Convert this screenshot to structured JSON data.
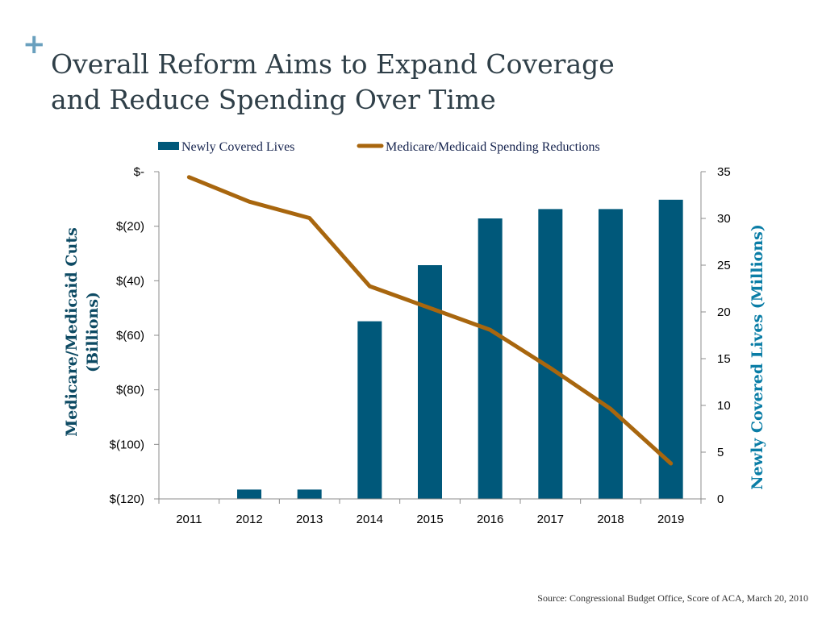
{
  "title": {
    "line1": "Overall Reform Aims to Expand Coverage",
    "line2": "and Reduce Spending Over Time"
  },
  "source": "Source: Congressional Budget Office, Score of ACA, March 20, 2010",
  "colors": {
    "bar": "#00587a",
    "line": "#a8660e",
    "title": "#2f3f48",
    "axis_label_left": "#0d4a63",
    "axis_label_right": "#0a7da6",
    "plus_icon": "#6aa0be"
  },
  "chart_data": {
    "type": "bar",
    "categories": [
      "2011",
      "2012",
      "2013",
      "2014",
      "2015",
      "2016",
      "2017",
      "2018",
      "2019"
    ],
    "series": [
      {
        "name": "Newly Covered Lives",
        "type": "bar",
        "axis": "right",
        "values": [
          0,
          1,
          1,
          19,
          25,
          30,
          31,
          31,
          32
        ]
      },
      {
        "name": "Medicare/Medicaid Spending Reductions",
        "type": "line",
        "axis": "left",
        "values": [
          -2,
          -11,
          -17,
          -42,
          -50,
          -58,
          -72,
          -87,
          -107
        ]
      }
    ],
    "ylabel_left": "Medicare/Medicaid Cuts (Billions)",
    "ylabel_left_lines": [
      "Medicare/Medicaid Cuts",
      "(Billions)"
    ],
    "ylabel_right": "Newly Covered Lives (Millions)",
    "ylim_left": [
      -120,
      0
    ],
    "ylim_right": [
      0,
      35
    ],
    "left_ticks": [
      {
        "value": 0,
        "label": "$-"
      },
      {
        "value": -20,
        "label": "$(20)"
      },
      {
        "value": -40,
        "label": "$(40)"
      },
      {
        "value": -60,
        "label": "$(60)"
      },
      {
        "value": -80,
        "label": "$(80)"
      },
      {
        "value": -100,
        "label": "$(100)"
      },
      {
        "value": -120,
        "label": "$(120)"
      }
    ],
    "right_ticks": [
      {
        "value": 35,
        "label": "35"
      },
      {
        "value": 30,
        "label": "30"
      },
      {
        "value": 25,
        "label": "25"
      },
      {
        "value": 20,
        "label": "20"
      },
      {
        "value": 15,
        "label": "15"
      },
      {
        "value": 10,
        "label": "10"
      },
      {
        "value": 5,
        "label": "5"
      },
      {
        "value": 0,
        "label": "0"
      }
    ],
    "legend_position": "top",
    "grid": false
  }
}
